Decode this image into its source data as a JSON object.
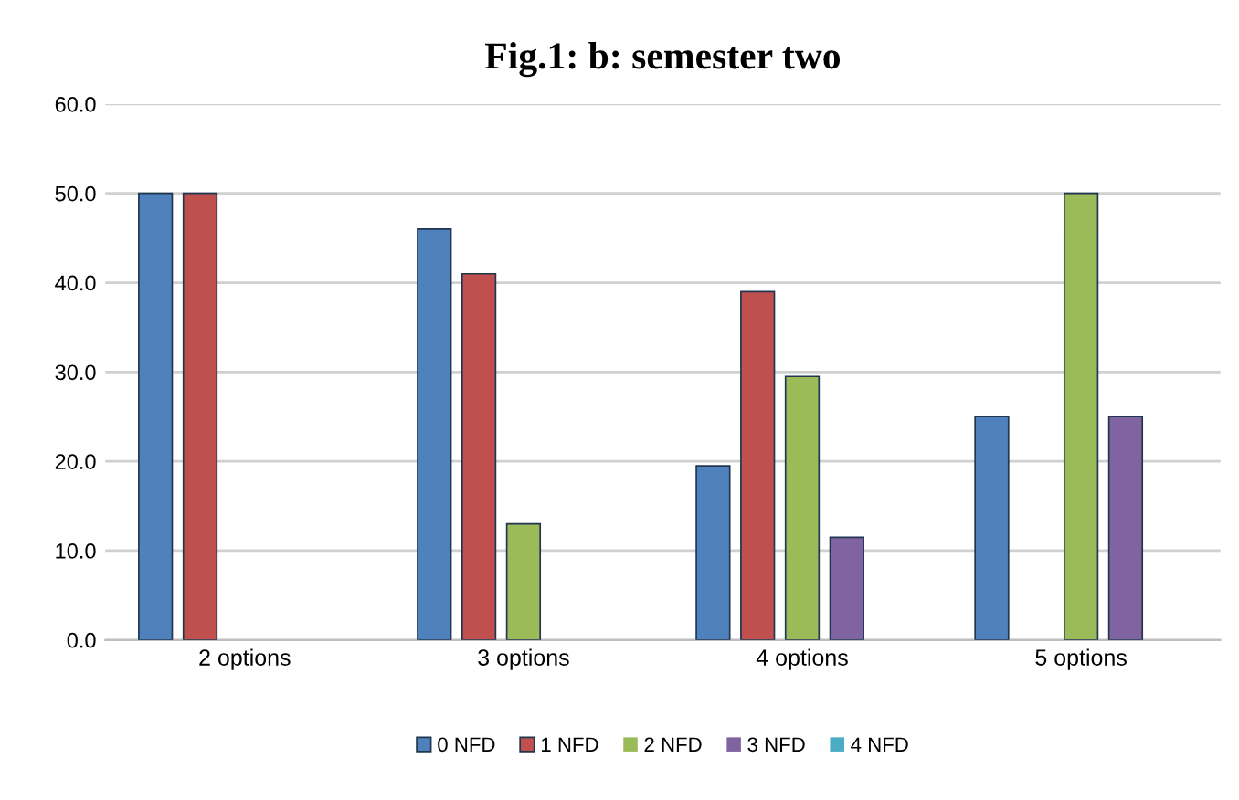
{
  "chart_data": {
    "type": "bar",
    "title": "Fig.1: b: semester two",
    "categories": [
      "2 options",
      "3 options",
      "4 options",
      "5 options"
    ],
    "series": [
      {
        "name": "0 NFD",
        "color": "#4f81bd",
        "values": [
          50,
          46,
          19.5,
          25
        ]
      },
      {
        "name": "1 NFD",
        "color": "#c0504d",
        "values": [
          50,
          41,
          39,
          0
        ]
      },
      {
        "name": "2 NFD",
        "color": "#9bbb59",
        "values": [
          0,
          13,
          29.5,
          50
        ]
      },
      {
        "name": "3 NFD",
        "color": "#8064a2",
        "values": [
          0,
          0,
          11.5,
          25
        ]
      },
      {
        "name": "4 NFD",
        "color": "#4bacc6",
        "values": [
          0,
          0,
          0,
          0
        ]
      }
    ],
    "ylim": [
      0,
      60
    ],
    "yticks": [
      {
        "value": 0,
        "label": "0.0"
      },
      {
        "value": 10,
        "label": "10.0"
      },
      {
        "value": 20,
        "label": "20.0"
      },
      {
        "value": 30,
        "label": "30.0"
      },
      {
        "value": 40,
        "label": "40.0"
      },
      {
        "value": 50,
        "label": "50.0"
      },
      {
        "value": 60,
        "label": "60.0"
      }
    ],
    "grid": "y",
    "legend": "bottom"
  }
}
